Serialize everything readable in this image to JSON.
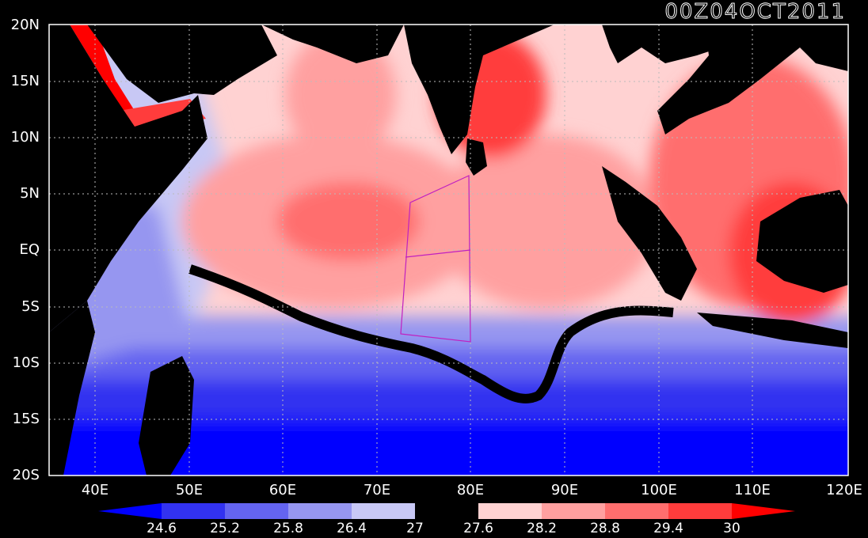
{
  "title": "00Z04OCT2011",
  "map": {
    "lon_range": [
      35,
      120
    ],
    "lat_range": [
      -20,
      20
    ],
    "lat_ticks": [
      "20N",
      "15N",
      "10N",
      "5N",
      "EQ",
      "5S",
      "10S",
      "15S",
      "20S"
    ],
    "lon_ticks": [
      "40E",
      "50E",
      "60E",
      "70E",
      "80E",
      "90E",
      "100E",
      "110E",
      "120E"
    ],
    "gridlines": true,
    "land_color": "#000000",
    "box_color": "#c020c0"
  },
  "colorbar": {
    "labels": [
      "24.6",
      "25.2",
      "25.8",
      "26.4",
      "27",
      "27.6",
      "28.2",
      "28.8",
      "29.4",
      "30"
    ],
    "colors": [
      "#0000ff",
      "#3232f0",
      "#6464f0",
      "#9696f0",
      "#c8c8f5",
      "#000000",
      "#ffd2d2",
      "#ffa0a0",
      "#ff6e6e",
      "#ff3c3c",
      "#ff0000"
    ]
  }
}
